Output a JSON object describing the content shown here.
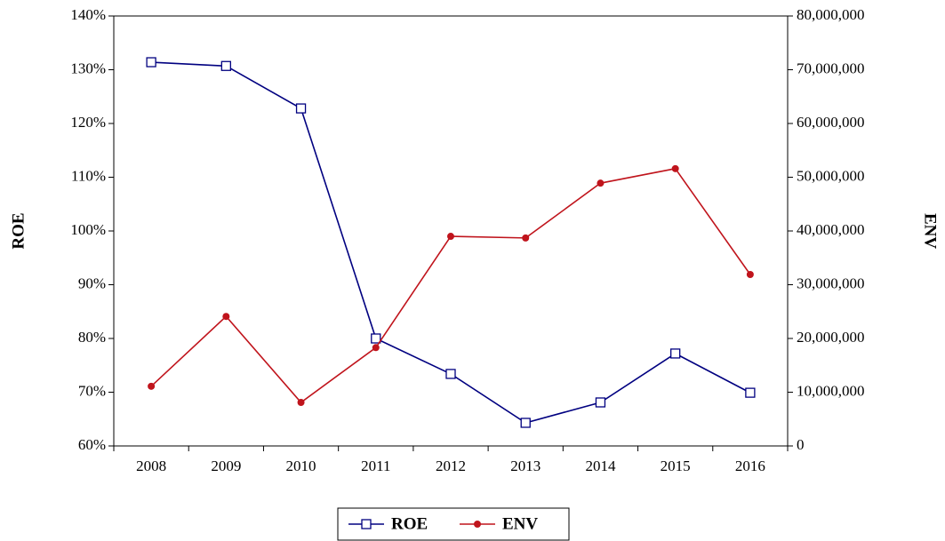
{
  "chart_data": {
    "type": "line",
    "categories": [
      "2008",
      "2009",
      "2010",
      "2011",
      "2012",
      "2013",
      "2014",
      "2015",
      "2016"
    ],
    "series": [
      {
        "name": "ROE",
        "color": "#000080",
        "marker": "square",
        "values": [
          131.4,
          130.7,
          122.8,
          80,
          73.4,
          64.3,
          68.1,
          77.2,
          69.9
        ]
      },
      {
        "name": "ENV",
        "color": "#c0141c",
        "marker": "circle",
        "axis": "y2",
        "values": [
          11100000,
          24100000,
          8100000,
          18300000,
          39000000,
          38700000,
          48900000,
          51600000,
          31900000
        ]
      }
    ],
    "ylabel": "ROE",
    "y2label": "ENV",
    "ylim": [
      60,
      140
    ],
    "yticks": [
      {
        "value": 60,
        "label": "60%"
      },
      {
        "value": 70,
        "label": "70%"
      },
      {
        "value": 80,
        "label": "80%"
      },
      {
        "value": 90,
        "label": "90%"
      },
      {
        "value": 100,
        "label": "100%"
      },
      {
        "value": 110,
        "label": "110%"
      },
      {
        "value": 120,
        "label": "120%"
      },
      {
        "value": 130,
        "label": "130%"
      },
      {
        "value": 140,
        "label": "140%"
      }
    ],
    "y2lim": [
      0,
      80000000
    ],
    "y2ticks": [
      0,
      {
        "value": 10000000,
        "label": "10,000,000"
      },
      {
        "value": 20000000,
        "label": "20,000,000"
      },
      {
        "value": 30000000,
        "label": "30,000,000"
      },
      {
        "value": 40000000,
        "label": "40,000,000"
      },
      {
        "value": 50000000,
        "label": "50,000,000"
      },
      {
        "value": 60000000,
        "label": "60,000,000"
      },
      {
        "value": 70000000,
        "label": "70,000,000"
      },
      {
        "value": 80000000,
        "label": "80,000,000"
      }
    ],
    "legend": "bottom",
    "grid": false
  }
}
